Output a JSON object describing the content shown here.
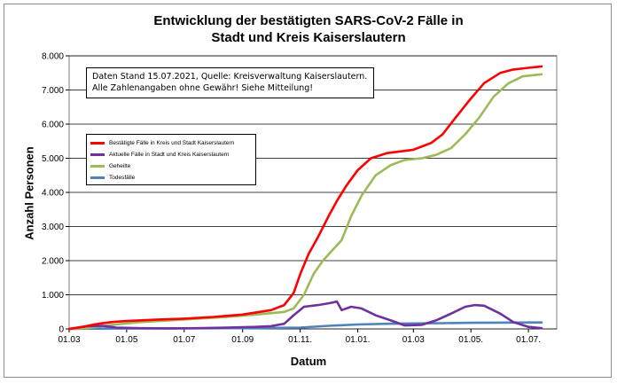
{
  "chart_data": {
    "type": "line",
    "title": [
      "Entwicklung der bestätigten SARS-CoV-2 Fälle in",
      "Stadt und Kreis Kaiserslautern"
    ],
    "xlabel": "Datum",
    "ylabel": "Anzahl Personen",
    "ylim": [
      0,
      8000
    ],
    "yticks": [
      0,
      1000,
      2000,
      3000,
      4000,
      5000,
      6000,
      7000,
      8000
    ],
    "ytick_labels": [
      "0",
      "1.000",
      "2.000",
      "3.000",
      "4.000",
      "5.000",
      "6.000",
      "7.000",
      "8.000"
    ],
    "xlim": [
      "2020-03-01",
      "2021-07-31"
    ],
    "xticks": [
      "2020-03-01",
      "2020-05-01",
      "2020-07-01",
      "2020-09-01",
      "2020-11-01",
      "2021-01-01",
      "2021-03-01",
      "2021-05-01",
      "2021-07-01"
    ],
    "xtick_labels": [
      "01.03",
      "01.05",
      "01.07",
      "01.09",
      "01.11.",
      "01.01.",
      "01.03",
      "01.05.",
      "01.07."
    ],
    "grid": "horizontal",
    "legend_position": "top-left",
    "annotation": "Daten Stand 15.07.2021, Quelle: Kreisverwaltung Kaiserslautern. Alle Zahlenangaben ohne Gewähr! Siehe Mitteilung!",
    "series": [
      {
        "name": "Bestätigte Fälle in Kreis und Stadt Kaiserslautern",
        "color": "#ff0000",
        "points": [
          [
            "2020-03-01",
            0
          ],
          [
            "2020-03-15",
            60
          ],
          [
            "2020-04-01",
            150
          ],
          [
            "2020-04-15",
            200
          ],
          [
            "2020-05-01",
            230
          ],
          [
            "2020-06-01",
            270
          ],
          [
            "2020-07-01",
            300
          ],
          [
            "2020-08-01",
            350
          ],
          [
            "2020-09-01",
            420
          ],
          [
            "2020-10-01",
            550
          ],
          [
            "2020-10-15",
            700
          ],
          [
            "2020-10-25",
            1050
          ],
          [
            "2020-11-01",
            1600
          ],
          [
            "2020-11-10",
            2200
          ],
          [
            "2020-11-20",
            2700
          ],
          [
            "2020-12-01",
            3300
          ],
          [
            "2020-12-10",
            3750
          ],
          [
            "2020-12-20",
            4200
          ],
          [
            "2021-01-01",
            4650
          ],
          [
            "2021-01-15",
            5000
          ],
          [
            "2021-02-01",
            5150
          ],
          [
            "2021-03-01",
            5250
          ],
          [
            "2021-03-20",
            5450
          ],
          [
            "2021-04-01",
            5700
          ],
          [
            "2021-04-15",
            6200
          ],
          [
            "2021-05-01",
            6750
          ],
          [
            "2021-05-15",
            7200
          ],
          [
            "2021-06-01",
            7500
          ],
          [
            "2021-06-15",
            7600
          ],
          [
            "2021-07-01",
            7650
          ],
          [
            "2021-07-15",
            7690
          ]
        ]
      },
      {
        "name": "Aktuelle Fälle in Stadt und Kreis Kaiserslautern",
        "color": "#7030a0",
        "points": [
          [
            "2020-03-01",
            0
          ],
          [
            "2020-03-20",
            80
          ],
          [
            "2020-04-05",
            90
          ],
          [
            "2020-04-20",
            40
          ],
          [
            "2020-05-15",
            20
          ],
          [
            "2020-06-15",
            15
          ],
          [
            "2020-07-15",
            20
          ],
          [
            "2020-08-15",
            40
          ],
          [
            "2020-09-15",
            60
          ],
          [
            "2020-10-01",
            80
          ],
          [
            "2020-10-15",
            150
          ],
          [
            "2020-10-25",
            400
          ],
          [
            "2020-11-05",
            650
          ],
          [
            "2020-11-20",
            700
          ],
          [
            "2020-12-01",
            750
          ],
          [
            "2020-12-10",
            800
          ],
          [
            "2020-12-15",
            550
          ],
          [
            "2020-12-25",
            650
          ],
          [
            "2021-01-05",
            600
          ],
          [
            "2021-01-20",
            400
          ],
          [
            "2021-02-05",
            250
          ],
          [
            "2021-02-20",
            100
          ],
          [
            "2021-03-10",
            120
          ],
          [
            "2021-03-25",
            250
          ],
          [
            "2021-04-10",
            450
          ],
          [
            "2021-04-25",
            650
          ],
          [
            "2021-05-05",
            700
          ],
          [
            "2021-05-15",
            680
          ],
          [
            "2021-06-01",
            450
          ],
          [
            "2021-06-15",
            200
          ],
          [
            "2021-07-01",
            60
          ],
          [
            "2021-07-15",
            20
          ]
        ]
      },
      {
        "name": "Geheilte",
        "color": "#9bbb59",
        "points": [
          [
            "2020-03-01",
            0
          ],
          [
            "2020-03-20",
            20
          ],
          [
            "2020-04-01",
            70
          ],
          [
            "2020-04-20",
            130
          ],
          [
            "2020-05-15",
            200
          ],
          [
            "2020-06-15",
            250
          ],
          [
            "2020-07-15",
            300
          ],
          [
            "2020-08-15",
            350
          ],
          [
            "2020-09-15",
            420
          ],
          [
            "2020-10-15",
            500
          ],
          [
            "2020-10-25",
            600
          ],
          [
            "2020-11-05",
            1000
          ],
          [
            "2020-11-15",
            1600
          ],
          [
            "2020-11-25",
            2000
          ],
          [
            "2020-12-05",
            2300
          ],
          [
            "2020-12-15",
            2600
          ],
          [
            "2020-12-25",
            3300
          ],
          [
            "2021-01-05",
            3900
          ],
          [
            "2021-01-20",
            4500
          ],
          [
            "2021-02-05",
            4800
          ],
          [
            "2021-02-20",
            4950
          ],
          [
            "2021-03-10",
            5000
          ],
          [
            "2021-03-25",
            5100
          ],
          [
            "2021-04-10",
            5300
          ],
          [
            "2021-04-25",
            5700
          ],
          [
            "2021-05-10",
            6200
          ],
          [
            "2021-05-25",
            6800
          ],
          [
            "2021-06-10",
            7200
          ],
          [
            "2021-06-25",
            7400
          ],
          [
            "2021-07-15",
            7460
          ]
        ]
      },
      {
        "name": "Todesfälle",
        "color": "#4f81bd",
        "points": [
          [
            "2020-03-01",
            0
          ],
          [
            "2020-04-15",
            10
          ],
          [
            "2020-06-01",
            15
          ],
          [
            "2020-09-01",
            20
          ],
          [
            "2020-11-01",
            40
          ],
          [
            "2020-12-01",
            90
          ],
          [
            "2021-01-01",
            130
          ],
          [
            "2021-02-01",
            150
          ],
          [
            "2021-03-01",
            160
          ],
          [
            "2021-04-01",
            170
          ],
          [
            "2021-05-01",
            180
          ],
          [
            "2021-06-01",
            185
          ],
          [
            "2021-07-15",
            190
          ]
        ]
      }
    ]
  }
}
